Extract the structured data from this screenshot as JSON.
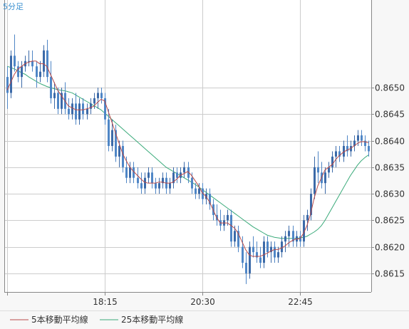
{
  "chart_data": {
    "type": "candlestick",
    "period_label": "5分足",
    "y_ticks": [
      "0.8650",
      "0.8645",
      "0.8640",
      "0.8635",
      "0.8630",
      "0.8625",
      "0.8620",
      "0.8615"
    ],
    "x_ticks": [
      "18:15",
      "20:30",
      "22:45"
    ],
    "ylim": [
      0.86115,
      0.86665
    ],
    "grid": true,
    "legend_position": "bottom-left",
    "series": [
      {
        "name": "5本移動平均線",
        "color": "#b84a4a"
      },
      {
        "name": "25本移動平均線",
        "color": "#3aaa7a"
      }
    ],
    "candles": [
      [
        0.8652,
        0.8654,
        0.8646,
        0.8649
      ],
      [
        0.8649,
        0.8657,
        0.8648,
        0.8656
      ],
      [
        0.8656,
        0.866,
        0.8653,
        0.8654
      ],
      [
        0.8654,
        0.8655,
        0.8651,
        0.8652
      ],
      [
        0.8652,
        0.8655,
        0.865,
        0.8654
      ],
      [
        0.8654,
        0.8656,
        0.8653,
        0.8655
      ],
      [
        0.8655,
        0.8657,
        0.8654,
        0.8655
      ],
      [
        0.8655,
        0.8657,
        0.8653,
        0.8654
      ],
      [
        0.8654,
        0.8655,
        0.865,
        0.8652
      ],
      [
        0.8652,
        0.8655,
        0.8651,
        0.8653
      ],
      [
        0.8653,
        0.8658,
        0.8652,
        0.8657
      ],
      [
        0.8657,
        0.8659,
        0.8651,
        0.8652
      ],
      [
        0.8652,
        0.8655,
        0.8647,
        0.8648
      ],
      [
        0.8648,
        0.8651,
        0.8646,
        0.8649
      ],
      [
        0.8649,
        0.865,
        0.8645,
        0.8646
      ],
      [
        0.8646,
        0.865,
        0.8645,
        0.8649
      ],
      [
        0.8649,
        0.8651,
        0.8645,
        0.8646
      ],
      [
        0.8646,
        0.8648,
        0.8644,
        0.8645
      ],
      [
        0.8645,
        0.8648,
        0.8644,
        0.8647
      ],
      [
        0.8647,
        0.8649,
        0.8643,
        0.8644
      ],
      [
        0.8644,
        0.8648,
        0.8643,
        0.8647
      ],
      [
        0.8647,
        0.8648,
        0.8644,
        0.8645
      ],
      [
        0.8645,
        0.8647,
        0.8644,
        0.8646
      ],
      [
        0.8646,
        0.8648,
        0.8645,
        0.8647
      ],
      [
        0.8647,
        0.8649,
        0.8646,
        0.8648
      ],
      [
        0.8648,
        0.865,
        0.8646,
        0.8649
      ],
      [
        0.8649,
        0.865,
        0.8647,
        0.8648
      ],
      [
        0.8648,
        0.8649,
        0.8643,
        0.8644
      ],
      [
        0.8644,
        0.8646,
        0.8638,
        0.8639
      ],
      [
        0.8639,
        0.8644,
        0.8638,
        0.8642
      ],
      [
        0.8642,
        0.8643,
        0.8636,
        0.8637
      ],
      [
        0.8637,
        0.864,
        0.8635,
        0.8639
      ],
      [
        0.8639,
        0.864,
        0.8634,
        0.8635
      ],
      [
        0.8635,
        0.8637,
        0.8632,
        0.8633
      ],
      [
        0.8633,
        0.8636,
        0.8632,
        0.8635
      ],
      [
        0.8635,
        0.8636,
        0.8632,
        0.8633
      ],
      [
        0.8633,
        0.8635,
        0.8631,
        0.8632
      ],
      [
        0.8632,
        0.8634,
        0.863,
        0.8631
      ],
      [
        0.8631,
        0.8634,
        0.863,
        0.8633
      ],
      [
        0.8633,
        0.8635,
        0.8632,
        0.8634
      ],
      [
        0.8634,
        0.8635,
        0.8631,
        0.8632
      ],
      [
        0.8632,
        0.8633,
        0.863,
        0.8631
      ],
      [
        0.8631,
        0.8633,
        0.863,
        0.8632
      ],
      [
        0.8632,
        0.8634,
        0.8631,
        0.8633
      ],
      [
        0.8633,
        0.8634,
        0.863,
        0.8631
      ],
      [
        0.8631,
        0.8633,
        0.863,
        0.8632
      ],
      [
        0.8632,
        0.8635,
        0.8631,
        0.8634
      ],
      [
        0.8634,
        0.8635,
        0.8632,
        0.8633
      ],
      [
        0.8633,
        0.8635,
        0.8632,
        0.8634
      ],
      [
        0.8634,
        0.8636,
        0.8633,
        0.8635
      ],
      [
        0.8635,
        0.8636,
        0.8632,
        0.8633
      ],
      [
        0.8633,
        0.8634,
        0.863,
        0.8631
      ],
      [
        0.8631,
        0.8632,
        0.8629,
        0.863
      ],
      [
        0.863,
        0.8632,
        0.8629,
        0.8631
      ],
      [
        0.8631,
        0.8632,
        0.8628,
        0.8629
      ],
      [
        0.8629,
        0.8631,
        0.8628,
        0.863
      ],
      [
        0.863,
        0.8631,
        0.8627,
        0.8628
      ],
      [
        0.8628,
        0.8629,
        0.8625,
        0.8626
      ],
      [
        0.8626,
        0.8628,
        0.8624,
        0.8625
      ],
      [
        0.8625,
        0.8627,
        0.8623,
        0.8624
      ],
      [
        0.8624,
        0.8626,
        0.8623,
        0.8625
      ],
      [
        0.8625,
        0.8627,
        0.8624,
        0.8626
      ],
      [
        0.8626,
        0.8627,
        0.862,
        0.8621
      ],
      [
        0.8621,
        0.8624,
        0.862,
        0.8623
      ],
      [
        0.8623,
        0.8624,
        0.8619,
        0.862
      ],
      [
        0.862,
        0.8622,
        0.8616,
        0.8617
      ],
      [
        0.8617,
        0.8619,
        0.8613,
        0.8615
      ],
      [
        0.8615,
        0.8621,
        0.8614,
        0.862
      ],
      [
        0.862,
        0.8622,
        0.8618,
        0.8619
      ],
      [
        0.8619,
        0.8621,
        0.8617,
        0.8618
      ],
      [
        0.8618,
        0.862,
        0.8616,
        0.8617
      ],
      [
        0.8617,
        0.8622,
        0.8616,
        0.8621
      ],
      [
        0.8621,
        0.8622,
        0.8618,
        0.8619
      ],
      [
        0.8619,
        0.8621,
        0.8617,
        0.862
      ],
      [
        0.862,
        0.8621,
        0.8617,
        0.8618
      ],
      [
        0.8618,
        0.862,
        0.8617,
        0.8619
      ],
      [
        0.8619,
        0.8622,
        0.8618,
        0.8621
      ],
      [
        0.8621,
        0.8623,
        0.8619,
        0.8622
      ],
      [
        0.8622,
        0.8624,
        0.862,
        0.8623
      ],
      [
        0.8623,
        0.8624,
        0.862,
        0.8621
      ],
      [
        0.8621,
        0.8623,
        0.862,
        0.8622
      ],
      [
        0.8622,
        0.8623,
        0.862,
        0.8621
      ],
      [
        0.8621,
        0.8626,
        0.862,
        0.8625
      ],
      [
        0.8625,
        0.8627,
        0.8623,
        0.8626
      ],
      [
        0.8626,
        0.8631,
        0.8625,
        0.863
      ],
      [
        0.863,
        0.8637,
        0.8629,
        0.8635
      ],
      [
        0.8635,
        0.8638,
        0.8632,
        0.8634
      ],
      [
        0.8634,
        0.8636,
        0.8631,
        0.8632
      ],
      [
        0.8632,
        0.8635,
        0.863,
        0.8634
      ],
      [
        0.8634,
        0.8636,
        0.8633,
        0.8635
      ],
      [
        0.8635,
        0.8638,
        0.8634,
        0.8637
      ],
      [
        0.8637,
        0.8639,
        0.8635,
        0.8638
      ],
      [
        0.8638,
        0.8639,
        0.8636,
        0.8637
      ],
      [
        0.8637,
        0.864,
        0.8636,
        0.8639
      ],
      [
        0.8639,
        0.8641,
        0.8637,
        0.8638
      ],
      [
        0.8638,
        0.864,
        0.8637,
        0.8639
      ],
      [
        0.8639,
        0.8641,
        0.8638,
        0.864
      ],
      [
        0.864,
        0.8642,
        0.8639,
        0.8641
      ],
      [
        0.8641,
        0.8642,
        0.8639,
        0.864
      ],
      [
        0.864,
        0.8641,
        0.8638,
        0.8639
      ],
      [
        0.8639,
        0.864,
        0.8637,
        0.8638
      ]
    ],
    "ma5": [
      0.86495,
      0.8651,
      0.86525,
      0.86535,
      0.8654,
      0.86545,
      0.86548,
      0.8655,
      0.8655,
      0.86545,
      0.86545,
      0.8654,
      0.86525,
      0.8651,
      0.86495,
      0.86485,
      0.86475,
      0.86465,
      0.86462,
      0.86458,
      0.86458,
      0.86458,
      0.8646,
      0.86462,
      0.86465,
      0.86472,
      0.86478,
      0.86475,
      0.86455,
      0.86435,
      0.86415,
      0.86395,
      0.86375,
      0.86362,
      0.8635,
      0.86342,
      0.86335,
      0.86328,
      0.86322,
      0.8632,
      0.8632,
      0.8632,
      0.86322,
      0.86322,
      0.8632,
      0.8632,
      0.86322,
      0.86328,
      0.86335,
      0.86338,
      0.86342,
      0.86335,
      0.86325,
      0.86315,
      0.86302,
      0.86295,
      0.86285,
      0.8627,
      0.86255,
      0.86245,
      0.86245,
      0.86245,
      0.8624,
      0.86235,
      0.86225,
      0.8621,
      0.86195,
      0.86185,
      0.86182,
      0.86182,
      0.86182,
      0.86185,
      0.86188,
      0.86192,
      0.86195,
      0.86195,
      0.86198,
      0.86202,
      0.86208,
      0.86212,
      0.86215,
      0.86215,
      0.86225,
      0.8624,
      0.86262,
      0.86292,
      0.86315,
      0.8633,
      0.86345,
      0.8635,
      0.86355,
      0.86365,
      0.86372,
      0.86378,
      0.86382,
      0.86385,
      0.8639,
      0.86395,
      0.86398,
      0.86398,
      0.86396
    ],
    "ma25": [
      0.8654,
      0.86538,
      0.86535,
      0.86532,
      0.86528,
      0.86525,
      0.8652,
      0.86516,
      0.86512,
      0.86508,
      0.86505,
      0.86502,
      0.865,
      0.86498,
      0.86496,
      0.86495,
      0.86494,
      0.86492,
      0.8649,
      0.86486,
      0.86482,
      0.86478,
      0.86474,
      0.8647,
      0.86466,
      0.86462,
      0.86458,
      0.86452,
      0.86446,
      0.8644,
      0.86434,
      0.86428,
      0.86422,
      0.86416,
      0.8641,
      0.86404,
      0.86398,
      0.86392,
      0.86386,
      0.8638,
      0.86374,
      0.86368,
      0.86362,
      0.86356,
      0.8635,
      0.86346,
      0.86342,
      0.86338,
      0.86334,
      0.8633,
      0.86326,
      0.86322,
      0.86318,
      0.86313,
      0.86308,
      0.86303,
      0.86298,
      0.86293,
      0.86288,
      0.86283,
      0.86278,
      0.86273,
      0.86268,
      0.86263,
      0.86258,
      0.86253,
      0.86248,
      0.86243,
      0.86238,
      0.86234,
      0.8623,
      0.86226,
      0.86222,
      0.8622,
      0.86218,
      0.86217,
      0.86216,
      0.86216,
      0.86216,
      0.86216,
      0.86216,
      0.86217,
      0.86218,
      0.8622,
      0.86224,
      0.86228,
      0.86233,
      0.8624,
      0.8625,
      0.86262,
      0.86274,
      0.86286,
      0.86298,
      0.8631,
      0.86322,
      0.86334,
      0.86344,
      0.86354,
      0.86362,
      0.86368,
      0.86373
    ]
  },
  "colors": {
    "background": "#f7f7f7",
    "plot_background": "#ffffff",
    "grid": "#cccccc",
    "axis": "#888888",
    "candle": "#4a78b0",
    "candle_up": "#3c6aa8",
    "candle_down": "#4f86c6",
    "ma5": "#b84a4a",
    "ma25": "#3aaa7a",
    "period_label": "#3a90d0"
  }
}
